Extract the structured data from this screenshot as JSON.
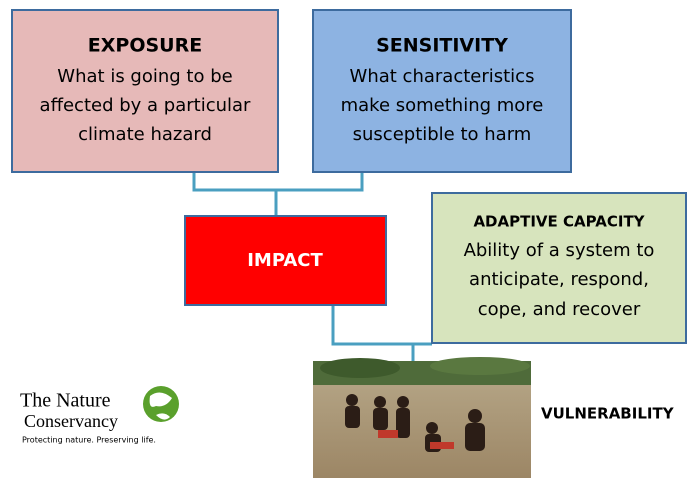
{
  "nodes": [
    {
      "title": "EXPOSURE",
      "lines": [
        "What is going to be",
        "affected by a particular",
        "climate hazard"
      ]
    },
    {
      "title": "SENSITIVITY",
      "lines": [
        "What characteristics",
        "make something more",
        "susceptible to harm"
      ]
    },
    {
      "title": "IMPACT"
    },
    {
      "title": "ADAPTIVE CAPACITY",
      "lines": [
        "Ability of a system to",
        "anticipate, respond,",
        "cope, and recover"
      ]
    },
    {
      "title": "VULNERABILITY"
    }
  ],
  "logo": {
    "name_top": "The Nature",
    "name_bottom": "Conservancy",
    "tagline": "Protecting nature. Preserving life."
  }
}
